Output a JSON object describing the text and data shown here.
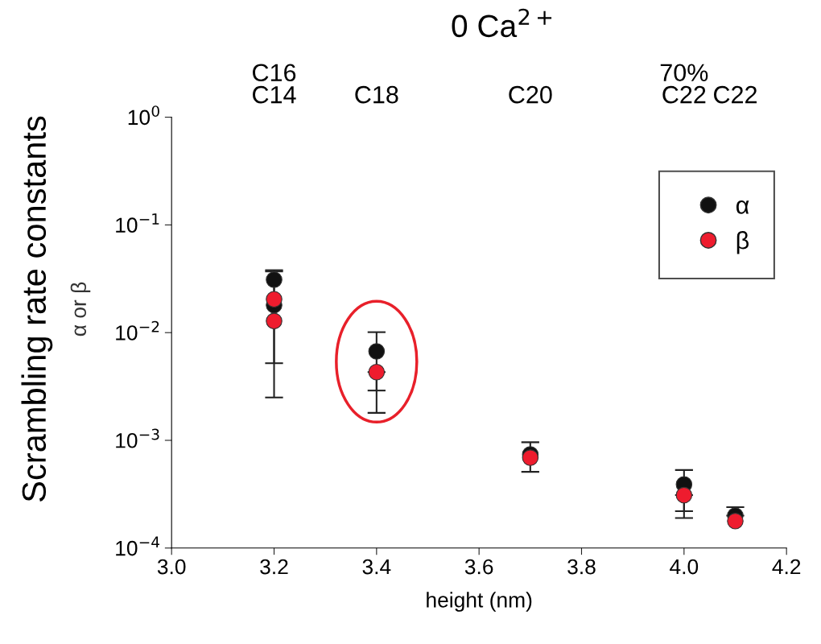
{
  "chart_data": {
    "type": "scatter",
    "title": "0 Ca$^{2+}$",
    "xlabel": "height (nm)",
    "ylabel": "Scrambling rate constants",
    "x": [
      3.2,
      3.2,
      3.4,
      3.7,
      4.0,
      4.1
    ],
    "series": [
      {
        "name": "α",
        "color": "#111111",
        "values": [
          0.031,
          0.018,
          0.0067,
          0.00074,
          0.00039,
          0.0002
        ],
        "errors": [
          [
            0.0052,
            0.038
          ],
          [
            0.0025,
            0.037
          ],
          [
            0.0029,
            0.0101
          ],
          [
            0.00051,
            0.00096
          ],
          [
            0.00022,
            0.00053
          ],
          [
            0.0002,
            0.00024
          ]
        ]
      },
      {
        "name": "β",
        "color": "#ee1c2e",
        "values": [
          0.0204,
          0.0128,
          0.0043,
          0.00069,
          0.00031,
          0.000178
        ],
        "errors": [
          null,
          null,
          [
            0.0018,
            0.0043
          ],
          null,
          [
            0.00019,
            0.00031
          ],
          null
        ]
      }
    ],
    "log": true,
    "xlim": [
      3.0,
      4.2
    ],
    "xticks": [
      {
        "value": 3,
        "label": "3.0"
      },
      3.2,
      3.4,
      3.6,
      3.8,
      {
        "value": 4,
        "label": "4.0"
      },
      4.2
    ],
    "ylim": [
      0.0001,
      1
    ],
    "yticks": [
      {
        "value": 1,
        "label": "10$^{0}$"
      },
      {
        "value": 0.1,
        "label": "10$^{−1}$"
      },
      {
        "value": 0.01,
        "label": "10$^{−2}$"
      },
      {
        "value": 0.001,
        "label": "10$^{−3}$"
      },
      {
        "value": 0.0001,
        "label": "10$^{−4}$"
      }
    ],
    "marker": "circle",
    "legend": "right",
    "grid": false,
    "annotations": [
      "α or β",
      "C16\nC14",
      "C18",
      "C20",
      "70%\nC22",
      "C22"
    ]
  }
}
